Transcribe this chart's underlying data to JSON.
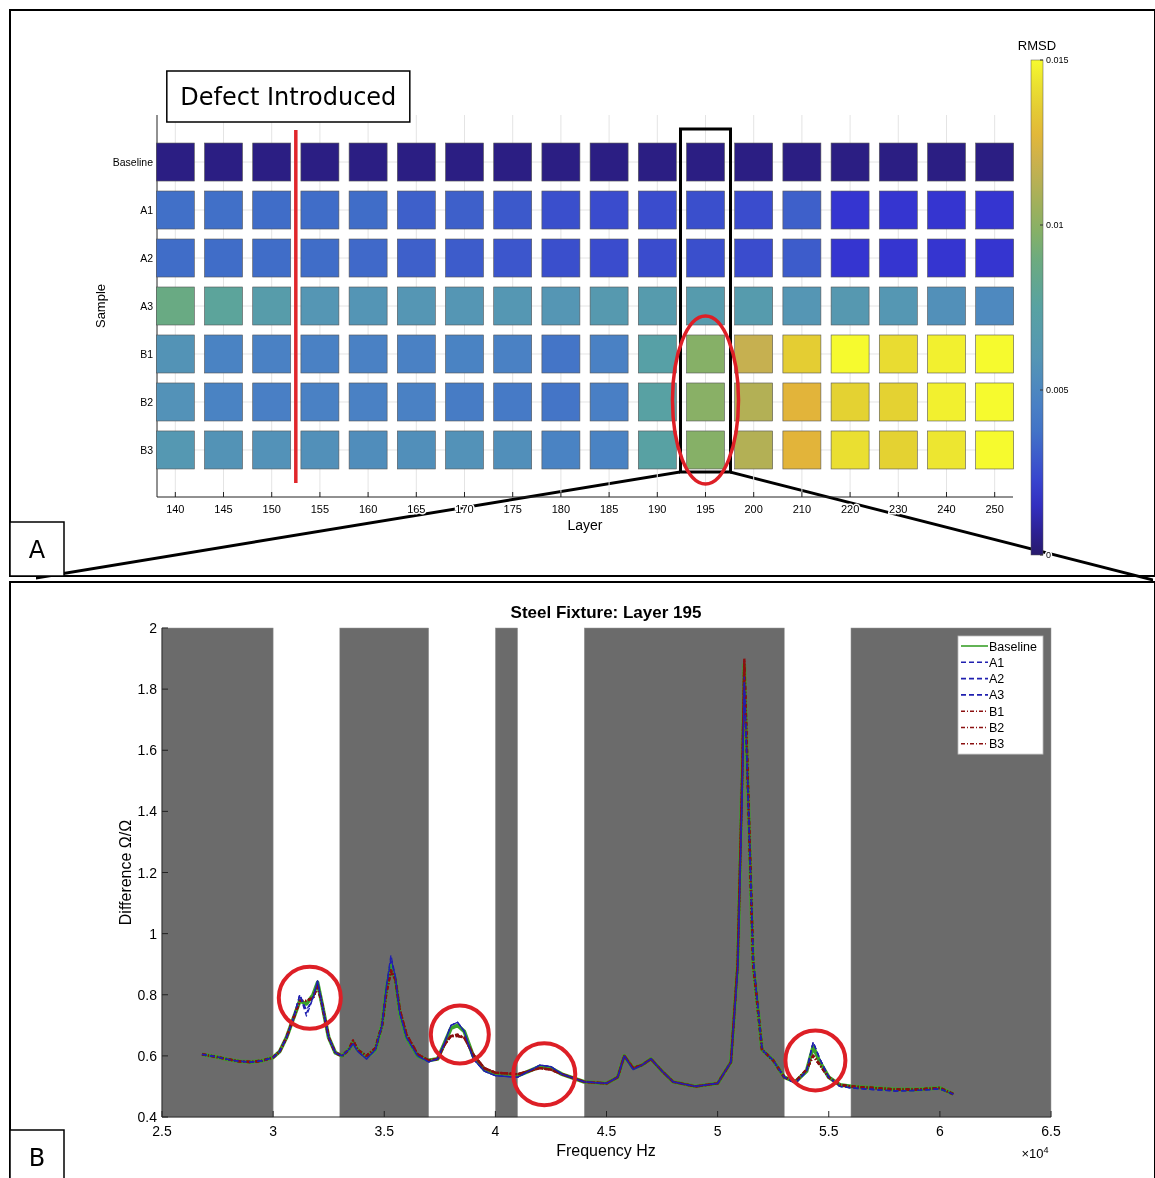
{
  "chart_data": [
    {
      "type": "heatmap",
      "xlabel": "Layer",
      "ylabel": "Sample",
      "clabel": "RMSD",
      "categories": [
        "140",
        "145",
        "150",
        "155",
        "160",
        "165",
        "170",
        "175",
        "180",
        "185",
        "190",
        "195",
        "200",
        "210",
        "220",
        "230",
        "240",
        "250"
      ],
      "y_categories": [
        "Baseline",
        "A1",
        "A2",
        "A3",
        "B1",
        "B2",
        "B3"
      ],
      "cells": [
        [
          0.0004,
          0.0004,
          0.0004,
          0.0004,
          0.0004,
          0.0004,
          0.0004,
          0.0004,
          0.0004,
          0.0004,
          0.0004,
          0.0004,
          0.0004,
          0.0004,
          0.0004,
          0.0004,
          0.0004,
          0.0004
        ],
        [
          0.0036,
          0.0036,
          0.0035,
          0.0035,
          0.0035,
          0.0031,
          0.0031,
          0.0029,
          0.0026,
          0.0025,
          0.0025,
          0.0026,
          0.0025,
          0.0031,
          0.0018,
          0.0018,
          0.0018,
          0.0018
        ],
        [
          0.0035,
          0.0035,
          0.0035,
          0.0035,
          0.0034,
          0.0031,
          0.003,
          0.0028,
          0.0026,
          0.0025,
          0.0025,
          0.0026,
          0.0025,
          0.003,
          0.0018,
          0.0018,
          0.0018,
          0.0018
        ],
        [
          0.0088,
          0.0078,
          0.0068,
          0.006,
          0.0059,
          0.006,
          0.006,
          0.0061,
          0.006,
          0.0064,
          0.0066,
          0.0066,
          0.0066,
          0.006,
          0.0063,
          0.0061,
          0.0056,
          0.0051
        ],
        [
          0.0058,
          0.0047,
          0.0046,
          0.0046,
          0.0046,
          0.0046,
          0.0047,
          0.0046,
          0.0039,
          0.0046,
          0.0072,
          0.0098,
          0.0118,
          0.0136,
          0.015,
          0.0141,
          0.0147,
          0.015
        ],
        [
          0.0057,
          0.0047,
          0.0045,
          0.0046,
          0.0046,
          0.0046,
          0.0043,
          0.0042,
          0.0039,
          0.0045,
          0.0074,
          0.0099,
          0.0112,
          0.0126,
          0.0138,
          0.0138,
          0.0147,
          0.015
        ],
        [
          0.0062,
          0.0058,
          0.0057,
          0.0056,
          0.0054,
          0.0055,
          0.0057,
          0.0055,
          0.0047,
          0.0047,
          0.0074,
          0.0098,
          0.0112,
          0.0126,
          0.0142,
          0.0138,
          0.0144,
          0.015
        ]
      ],
      "clim": [
        0,
        0.015
      ],
      "cticks": [
        0,
        0.005,
        0.01,
        0.015
      ],
      "grid": true,
      "annotations": [
        "A",
        "Defect Introduced"
      ]
    },
    {
      "type": "line",
      "title": "Steel Fixture: Layer 195",
      "xlabel": "Frequency Hz",
      "ylabel": "Difference Ω/Ω",
      "x": [
        2.68,
        2.75,
        2.8,
        2.85,
        2.9,
        2.95,
        3.0,
        3.03,
        3.06,
        3.09,
        3.12,
        3.15,
        3.18,
        3.2,
        3.22,
        3.25,
        3.28,
        3.31,
        3.34,
        3.36,
        3.38,
        3.42,
        3.46,
        3.49,
        3.51,
        3.53,
        3.55,
        3.57,
        3.6,
        3.65,
        3.7,
        3.74,
        3.77,
        3.8,
        3.83,
        3.86,
        3.9,
        3.95,
        4.0,
        4.1,
        4.15,
        4.2,
        4.25,
        4.3,
        4.4,
        4.5,
        4.55,
        4.58,
        4.62,
        4.66,
        4.7,
        4.75,
        4.8,
        4.9,
        5.0,
        5.03,
        5.06,
        5.09,
        5.11,
        5.12,
        5.135,
        5.16,
        5.2,
        5.25,
        5.3,
        5.35,
        5.4,
        5.43,
        5.46,
        5.5,
        5.55,
        5.6,
        5.7,
        5.8,
        5.9,
        6.0,
        6.06
      ],
      "xlim": [
        2.5,
        6.5
      ],
      "xticks": [
        2.5,
        3,
        3.5,
        4,
        4.5,
        5,
        5.5,
        6,
        6.5
      ],
      "ylim": [
        0.4,
        2
      ],
      "yticks": [
        0.4,
        0.6,
        0.8,
        1,
        1.2,
        1.4,
        1.6,
        1.8,
        2
      ],
      "series": [
        {
          "name": "Baseline",
          "color": "#3aa02a",
          "line_style": "solid",
          "values": [
            0.605,
            0.596,
            0.588,
            0.582,
            0.58,
            0.584,
            0.595,
            0.615,
            0.66,
            0.72,
            0.78,
            0.77,
            0.8,
            0.84,
            0.77,
            0.66,
            0.61,
            0.6,
            0.62,
            0.645,
            0.62,
            0.595,
            0.62,
            0.7,
            0.82,
            0.895,
            0.85,
            0.74,
            0.66,
            0.6,
            0.585,
            0.59,
            0.64,
            0.69,
            0.7,
            0.68,
            0.6,
            0.555,
            0.54,
            0.535,
            0.55,
            0.565,
            0.56,
            0.54,
            0.515,
            0.51,
            0.53,
            0.6,
            0.56,
            0.57,
            0.59,
            0.55,
            0.515,
            0.5,
            0.51,
            0.545,
            0.58,
            0.9,
            1.5,
            1.88,
            1.5,
            0.9,
            0.62,
            0.585,
            0.53,
            0.515,
            0.55,
            0.63,
            0.58,
            0.53,
            0.505,
            0.5,
            0.495,
            0.49,
            0.49,
            0.495,
            0.475
          ]
        },
        {
          "name": "A1",
          "color": "#2020b0",
          "line_style": "dashed",
          "values": [
            0.605,
            0.596,
            0.588,
            0.582,
            0.58,
            0.584,
            0.595,
            0.615,
            0.66,
            0.72,
            0.8,
            0.73,
            0.79,
            0.845,
            0.77,
            0.66,
            0.61,
            0.6,
            0.62,
            0.64,
            0.615,
            0.59,
            0.62,
            0.7,
            0.83,
            0.93,
            0.86,
            0.74,
            0.66,
            0.6,
            0.58,
            0.59,
            0.64,
            0.7,
            0.71,
            0.68,
            0.59,
            0.55,
            0.535,
            0.53,
            0.55,
            0.57,
            0.565,
            0.54,
            0.515,
            0.51,
            0.53,
            0.6,
            0.555,
            0.57,
            0.59,
            0.55,
            0.515,
            0.5,
            0.51,
            0.545,
            0.58,
            0.88,
            1.45,
            1.82,
            1.5,
            0.92,
            0.62,
            0.585,
            0.53,
            0.51,
            0.55,
            0.645,
            0.59,
            0.53,
            0.5,
            0.495,
            0.49,
            0.485,
            0.487,
            0.492,
            0.475
          ]
        },
        {
          "name": "A2",
          "color": "#2020b0",
          "line_style": "dashed",
          "values": [
            0.605,
            0.596,
            0.588,
            0.582,
            0.58,
            0.584,
            0.595,
            0.615,
            0.66,
            0.72,
            0.8,
            0.74,
            0.79,
            0.845,
            0.77,
            0.66,
            0.61,
            0.6,
            0.62,
            0.64,
            0.615,
            0.59,
            0.62,
            0.7,
            0.83,
            0.92,
            0.86,
            0.74,
            0.66,
            0.6,
            0.58,
            0.59,
            0.64,
            0.7,
            0.71,
            0.68,
            0.59,
            0.55,
            0.535,
            0.53,
            0.55,
            0.57,
            0.565,
            0.54,
            0.515,
            0.51,
            0.53,
            0.6,
            0.555,
            0.57,
            0.59,
            0.55,
            0.515,
            0.5,
            0.51,
            0.545,
            0.58,
            0.88,
            1.45,
            1.8,
            1.5,
            0.92,
            0.62,
            0.585,
            0.53,
            0.51,
            0.55,
            0.645,
            0.59,
            0.53,
            0.5,
            0.495,
            0.49,
            0.485,
            0.487,
            0.492,
            0.475
          ]
        },
        {
          "name": "A3",
          "color": "#2020b0",
          "line_style": "dashed",
          "values": [
            0.605,
            0.596,
            0.588,
            0.582,
            0.58,
            0.584,
            0.595,
            0.615,
            0.66,
            0.72,
            0.8,
            0.75,
            0.79,
            0.845,
            0.77,
            0.66,
            0.61,
            0.6,
            0.62,
            0.64,
            0.615,
            0.59,
            0.62,
            0.7,
            0.83,
            0.91,
            0.86,
            0.74,
            0.66,
            0.6,
            0.58,
            0.59,
            0.64,
            0.7,
            0.71,
            0.68,
            0.59,
            0.55,
            0.535,
            0.53,
            0.55,
            0.57,
            0.565,
            0.54,
            0.515,
            0.51,
            0.53,
            0.6,
            0.555,
            0.57,
            0.59,
            0.55,
            0.515,
            0.5,
            0.51,
            0.545,
            0.58,
            0.88,
            1.45,
            1.84,
            1.5,
            0.92,
            0.62,
            0.585,
            0.53,
            0.51,
            0.55,
            0.645,
            0.59,
            0.53,
            0.5,
            0.495,
            0.49,
            0.485,
            0.487,
            0.492,
            0.475
          ]
        },
        {
          "name": "B1",
          "color": "#8b1010",
          "line_style": "dotted",
          "values": [
            0.605,
            0.596,
            0.588,
            0.582,
            0.58,
            0.584,
            0.595,
            0.615,
            0.66,
            0.72,
            0.78,
            0.78,
            0.79,
            0.83,
            0.77,
            0.66,
            0.61,
            0.6,
            0.62,
            0.65,
            0.62,
            0.6,
            0.625,
            0.7,
            0.81,
            0.88,
            0.85,
            0.75,
            0.67,
            0.605,
            0.585,
            0.59,
            0.635,
            0.665,
            0.665,
            0.66,
            0.605,
            0.56,
            0.545,
            0.54,
            0.55,
            0.56,
            0.555,
            0.54,
            0.515,
            0.51,
            0.53,
            0.6,
            0.56,
            0.57,
            0.59,
            0.55,
            0.515,
            0.5,
            0.51,
            0.545,
            0.58,
            0.9,
            1.5,
            1.9,
            1.52,
            0.9,
            0.62,
            0.585,
            0.53,
            0.515,
            0.555,
            0.6,
            0.57,
            0.53,
            0.505,
            0.5,
            0.495,
            0.49,
            0.49,
            0.495,
            0.475
          ]
        },
        {
          "name": "B2",
          "color": "#8b1010",
          "line_style": "dotted",
          "values": [
            0.605,
            0.596,
            0.588,
            0.582,
            0.58,
            0.584,
            0.595,
            0.615,
            0.66,
            0.72,
            0.78,
            0.78,
            0.79,
            0.83,
            0.77,
            0.66,
            0.61,
            0.6,
            0.62,
            0.65,
            0.62,
            0.6,
            0.625,
            0.7,
            0.81,
            0.875,
            0.85,
            0.75,
            0.67,
            0.605,
            0.585,
            0.59,
            0.635,
            0.665,
            0.665,
            0.66,
            0.605,
            0.56,
            0.545,
            0.54,
            0.55,
            0.56,
            0.555,
            0.54,
            0.515,
            0.51,
            0.53,
            0.6,
            0.56,
            0.57,
            0.59,
            0.55,
            0.515,
            0.5,
            0.51,
            0.545,
            0.58,
            0.9,
            1.5,
            1.89,
            1.52,
            0.9,
            0.62,
            0.585,
            0.53,
            0.515,
            0.555,
            0.6,
            0.57,
            0.53,
            0.505,
            0.5,
            0.495,
            0.49,
            0.49,
            0.495,
            0.475
          ]
        },
        {
          "name": "B3",
          "color": "#8b1010",
          "line_style": "dotted",
          "values": [
            0.605,
            0.596,
            0.588,
            0.582,
            0.58,
            0.584,
            0.595,
            0.615,
            0.66,
            0.72,
            0.78,
            0.78,
            0.79,
            0.83,
            0.77,
            0.66,
            0.61,
            0.6,
            0.62,
            0.65,
            0.62,
            0.6,
            0.625,
            0.7,
            0.81,
            0.88,
            0.85,
            0.75,
            0.67,
            0.605,
            0.585,
            0.59,
            0.635,
            0.665,
            0.67,
            0.66,
            0.605,
            0.56,
            0.545,
            0.54,
            0.55,
            0.56,
            0.555,
            0.54,
            0.515,
            0.51,
            0.53,
            0.6,
            0.56,
            0.57,
            0.59,
            0.55,
            0.515,
            0.5,
            0.51,
            0.545,
            0.58,
            0.9,
            1.5,
            1.88,
            1.52,
            0.9,
            0.62,
            0.585,
            0.53,
            0.515,
            0.555,
            0.6,
            0.57,
            0.53,
            0.505,
            0.5,
            0.495,
            0.49,
            0.49,
            0.495,
            0.475
          ]
        }
      ],
      "bands": [
        {
          "axis": "x",
          "from": 2.5,
          "to": 3.0,
          "color": "#6b6b6b"
        },
        {
          "axis": "x",
          "from": 3.3,
          "to": 3.7,
          "color": "#6b6b6b"
        },
        {
          "axis": "x",
          "from": 4.0,
          "to": 4.1,
          "color": "#6b6b6b"
        },
        {
          "axis": "x",
          "from": 4.4,
          "to": 5.3,
          "color": "#6b6b6b"
        },
        {
          "axis": "x",
          "from": 5.6,
          "to": 6.5,
          "color": "#6b6b6b"
        }
      ],
      "legend": "top right",
      "annotations": [
        "B",
        "×10$^{4}$"
      ]
    }
  ]
}
